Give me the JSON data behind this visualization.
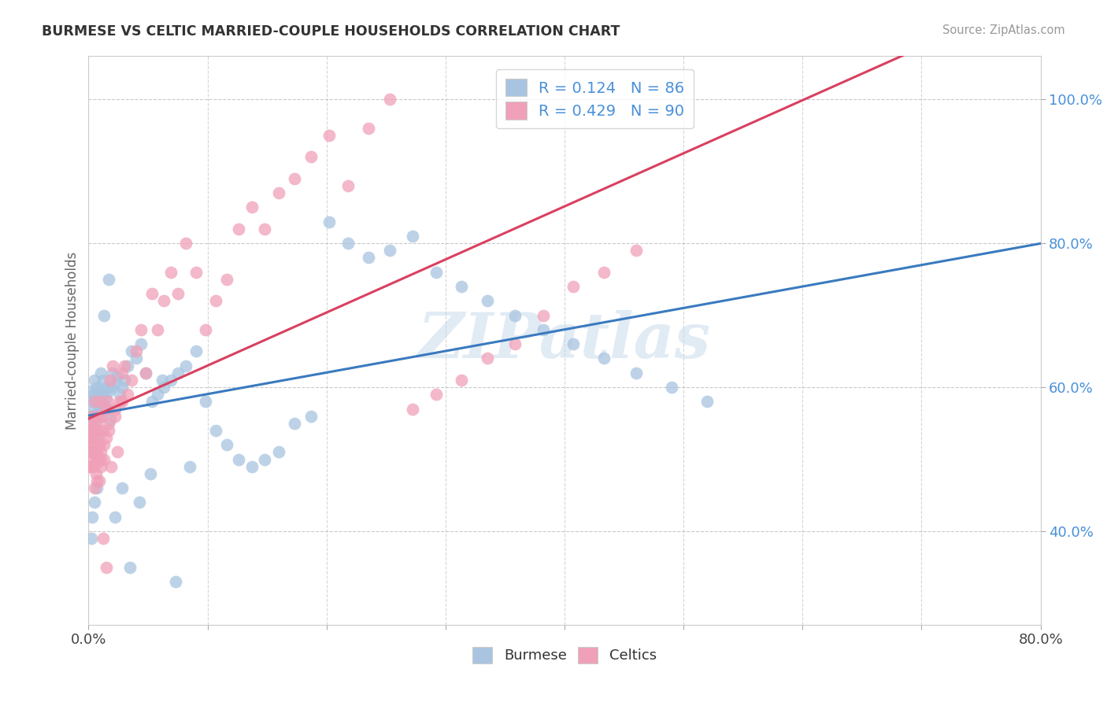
{
  "title": "BURMESE VS CELTIC MARRIED-COUPLE HOUSEHOLDS CORRELATION CHART",
  "source": "Source: ZipAtlas.com",
  "ylabel": "Married-couple Households",
  "burmese_R": 0.124,
  "burmese_N": 86,
  "celtic_R": 0.429,
  "celtic_N": 90,
  "burmese_color": "#a8c4e0",
  "celtic_color": "#f0a0b8",
  "burmese_line_color": "#3a7abf",
  "celtic_line_color": "#d94060",
  "xlim": [
    0.0,
    0.8
  ],
  "ylim": [
    0.27,
    1.06
  ],
  "y_tick_values": [
    0.4,
    0.6,
    0.8,
    1.0
  ],
  "y_tick_labels": [
    "40.0%",
    "60.0%",
    "80.0%",
    "100.0%"
  ],
  "watermark": "ZIPatlas",
  "legend1_label1": "R = 0.124   N = 86",
  "legend1_label2": "R = 0.429   N = 90",
  "legend2_label1": "Burmese",
  "legend2_label2": "Celtics",
  "burmese_x": [
    0.001,
    0.001,
    0.002,
    0.002,
    0.003,
    0.003,
    0.004,
    0.004,
    0.005,
    0.005,
    0.006,
    0.006,
    0.007,
    0.007,
    0.008,
    0.008,
    0.009,
    0.009,
    0.01,
    0.01,
    0.011,
    0.012,
    0.013,
    0.014,
    0.015,
    0.016,
    0.017,
    0.018,
    0.019,
    0.02,
    0.022,
    0.024,
    0.026,
    0.028,
    0.03,
    0.033,
    0.036,
    0.04,
    0.044,
    0.048,
    0.053,
    0.058,
    0.063,
    0.069,
    0.075,
    0.082,
    0.09,
    0.098,
    0.107,
    0.116,
    0.126,
    0.137,
    0.148,
    0.16,
    0.173,
    0.187,
    0.202,
    0.218,
    0.235,
    0.253,
    0.272,
    0.292,
    0.313,
    0.335,
    0.358,
    0.382,
    0.407,
    0.433,
    0.46,
    0.49,
    0.52,
    0.002,
    0.003,
    0.005,
    0.007,
    0.01,
    0.013,
    0.017,
    0.022,
    0.028,
    0.035,
    0.043,
    0.052,
    0.062,
    0.073,
    0.085
  ],
  "burmese_y": [
    0.595,
    0.56,
    0.58,
    0.51,
    0.56,
    0.53,
    0.59,
    0.545,
    0.57,
    0.61,
    0.56,
    0.58,
    0.6,
    0.555,
    0.565,
    0.595,
    0.535,
    0.57,
    0.58,
    0.62,
    0.59,
    0.61,
    0.575,
    0.585,
    0.6,
    0.57,
    0.595,
    0.555,
    0.6,
    0.62,
    0.605,
    0.615,
    0.59,
    0.6,
    0.61,
    0.63,
    0.65,
    0.64,
    0.66,
    0.62,
    0.58,
    0.59,
    0.6,
    0.61,
    0.62,
    0.63,
    0.65,
    0.58,
    0.54,
    0.52,
    0.5,
    0.49,
    0.5,
    0.51,
    0.55,
    0.56,
    0.83,
    0.8,
    0.78,
    0.79,
    0.81,
    0.76,
    0.74,
    0.72,
    0.7,
    0.68,
    0.66,
    0.64,
    0.62,
    0.6,
    0.58,
    0.39,
    0.42,
    0.44,
    0.46,
    0.59,
    0.7,
    0.75,
    0.42,
    0.46,
    0.35,
    0.44,
    0.48,
    0.61,
    0.33,
    0.49
  ],
  "celtic_x": [
    0.001,
    0.001,
    0.002,
    0.002,
    0.003,
    0.003,
    0.004,
    0.004,
    0.005,
    0.005,
    0.006,
    0.006,
    0.007,
    0.007,
    0.008,
    0.008,
    0.009,
    0.009,
    0.01,
    0.01,
    0.011,
    0.012,
    0.013,
    0.014,
    0.015,
    0.016,
    0.017,
    0.018,
    0.019,
    0.02,
    0.022,
    0.024,
    0.026,
    0.028,
    0.03,
    0.033,
    0.036,
    0.04,
    0.044,
    0.048,
    0.053,
    0.058,
    0.063,
    0.069,
    0.075,
    0.082,
    0.09,
    0.098,
    0.107,
    0.116,
    0.126,
    0.137,
    0.148,
    0.16,
    0.173,
    0.187,
    0.202,
    0.218,
    0.235,
    0.253,
    0.272,
    0.292,
    0.313,
    0.335,
    0.358,
    0.382,
    0.407,
    0.433,
    0.46,
    0.002,
    0.003,
    0.005,
    0.007,
    0.01,
    0.013,
    0.017,
    0.022,
    0.028,
    0.001,
    0.002,
    0.003,
    0.004,
    0.005,
    0.006,
    0.007,
    0.008,
    0.009,
    0.01,
    0.012,
    0.015
  ],
  "celtic_y": [
    0.53,
    0.49,
    0.51,
    0.55,
    0.5,
    0.53,
    0.52,
    0.49,
    0.51,
    0.54,
    0.53,
    0.55,
    0.51,
    0.495,
    0.54,
    0.5,
    0.52,
    0.56,
    0.51,
    0.58,
    0.56,
    0.54,
    0.5,
    0.57,
    0.53,
    0.58,
    0.55,
    0.61,
    0.49,
    0.63,
    0.57,
    0.51,
    0.58,
    0.62,
    0.63,
    0.59,
    0.61,
    0.65,
    0.68,
    0.62,
    0.73,
    0.68,
    0.72,
    0.76,
    0.73,
    0.8,
    0.76,
    0.68,
    0.72,
    0.75,
    0.82,
    0.85,
    0.82,
    0.87,
    0.89,
    0.92,
    0.95,
    0.88,
    0.96,
    1.0,
    0.57,
    0.59,
    0.61,
    0.64,
    0.66,
    0.7,
    0.74,
    0.76,
    0.79,
    0.54,
    0.56,
    0.58,
    0.47,
    0.5,
    0.52,
    0.54,
    0.56,
    0.58,
    0.49,
    0.51,
    0.52,
    0.54,
    0.46,
    0.48,
    0.5,
    0.52,
    0.47,
    0.49,
    0.39,
    0.35
  ]
}
